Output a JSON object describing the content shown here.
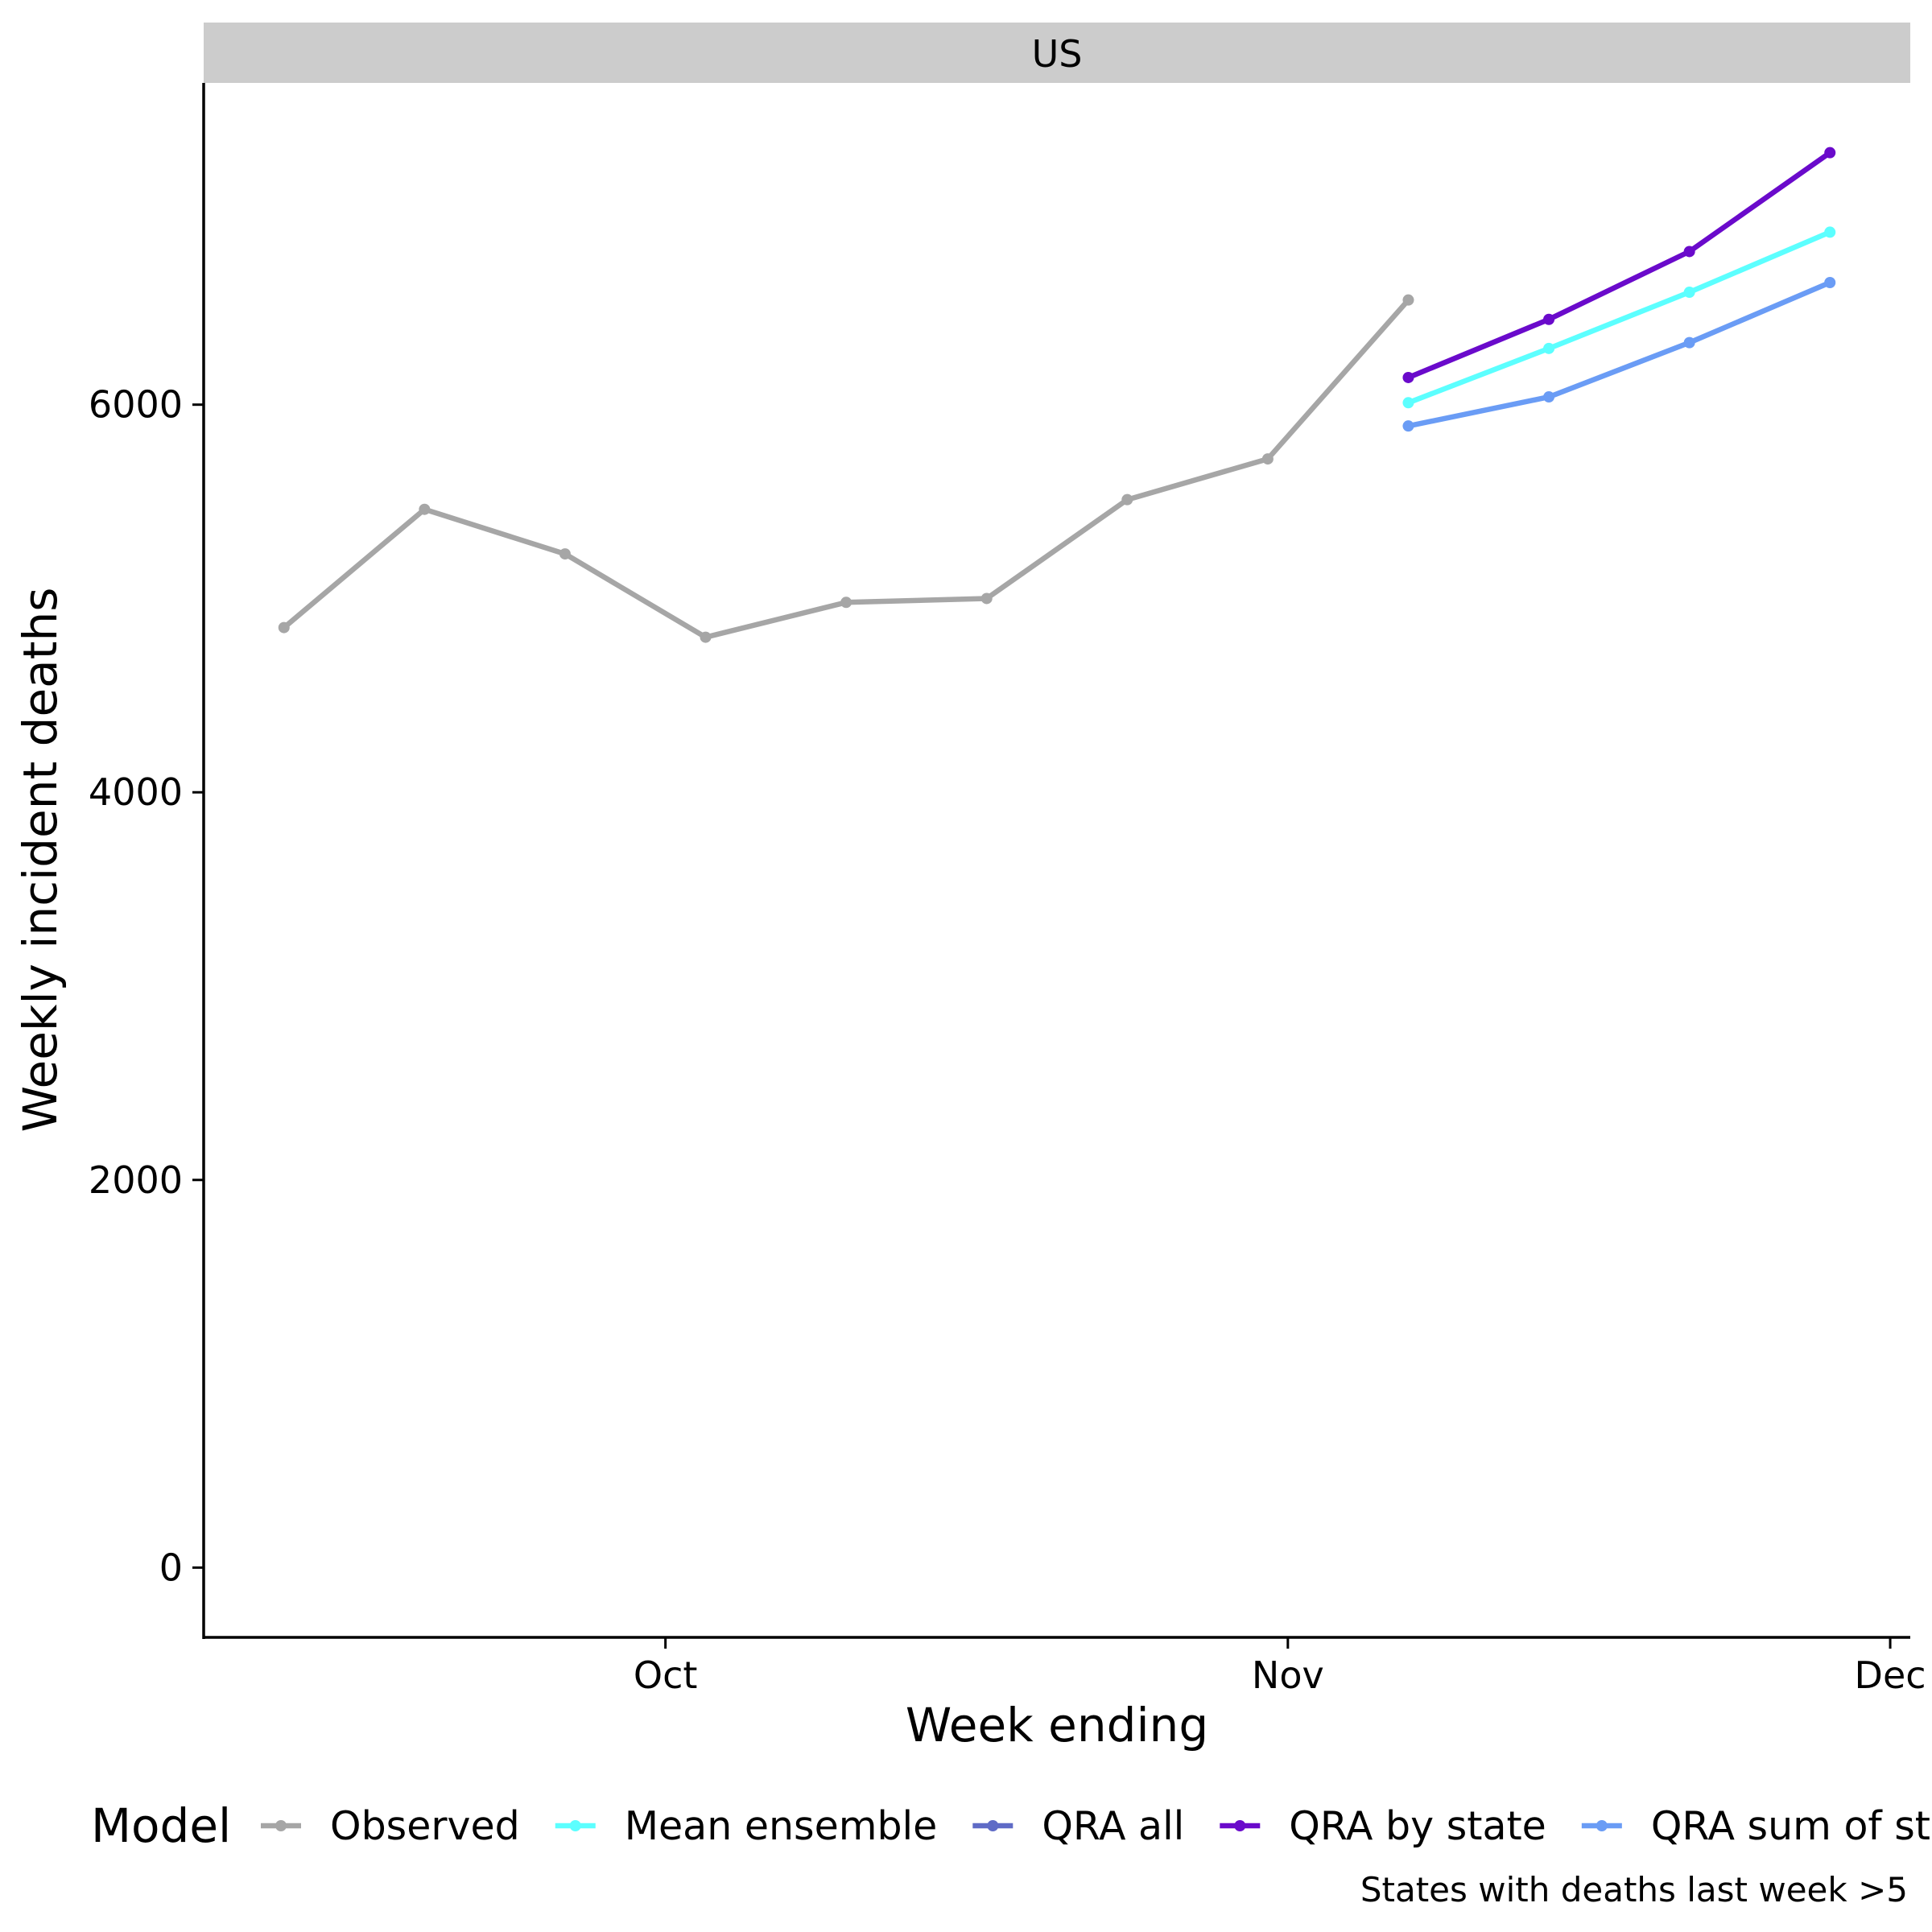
{
  "chart_data": {
    "type": "line",
    "facet_label": "US",
    "xlabel": "Week ending",
    "ylabel": "Weekly incident deaths",
    "x_tick_labels": [
      {
        "date": "2020-10-01",
        "label": "Oct"
      },
      {
        "date": "2020-11-01",
        "label": "Nov"
      },
      {
        "date": "2020-12-01",
        "label": "Dec"
      }
    ],
    "y_ticks": [
      0,
      2000,
      4000,
      6000
    ],
    "xlim": [
      "2020-09-08",
      "2020-12-02"
    ],
    "ylim": [
      -360,
      7660
    ],
    "legend_title": "Model",
    "legend_position": "bottom",
    "caption": "States with deaths last week >5",
    "series": [
      {
        "name": "Observed",
        "color": "#A6A6A6",
        "x": [
          "2020-09-12",
          "2020-09-19",
          "2020-09-26",
          "2020-10-03",
          "2020-10-10",
          "2020-10-17",
          "2020-10-24",
          "2020-10-31",
          "2020-11-07"
        ],
        "values": [
          4850,
          5460,
          5230,
          4800,
          4980,
          5000,
          5510,
          5720,
          6540
        ]
      },
      {
        "name": "Mean ensemble",
        "color": "#5CFFFF",
        "x": [
          "2020-11-07",
          "2020-11-14",
          "2020-11-21",
          "2020-11-28"
        ],
        "values": [
          6010,
          6290,
          6580,
          6890
        ]
      },
      {
        "name": "QRA all",
        "color": "#5F6BC6",
        "x": [],
        "values": []
      },
      {
        "name": "QRA by state",
        "color": "#6A0ACB",
        "x": [
          "2020-11-07",
          "2020-11-14",
          "2020-11-21",
          "2020-11-28"
        ],
        "values": [
          6140,
          6440,
          6790,
          7300
        ]
      },
      {
        "name": "QRA sum of states",
        "color": "#6A9CF5",
        "x": [
          "2020-11-07",
          "2020-11-14",
          "2020-11-21",
          "2020-11-28"
        ],
        "values": [
          5890,
          6040,
          6320,
          6630
        ]
      }
    ]
  }
}
